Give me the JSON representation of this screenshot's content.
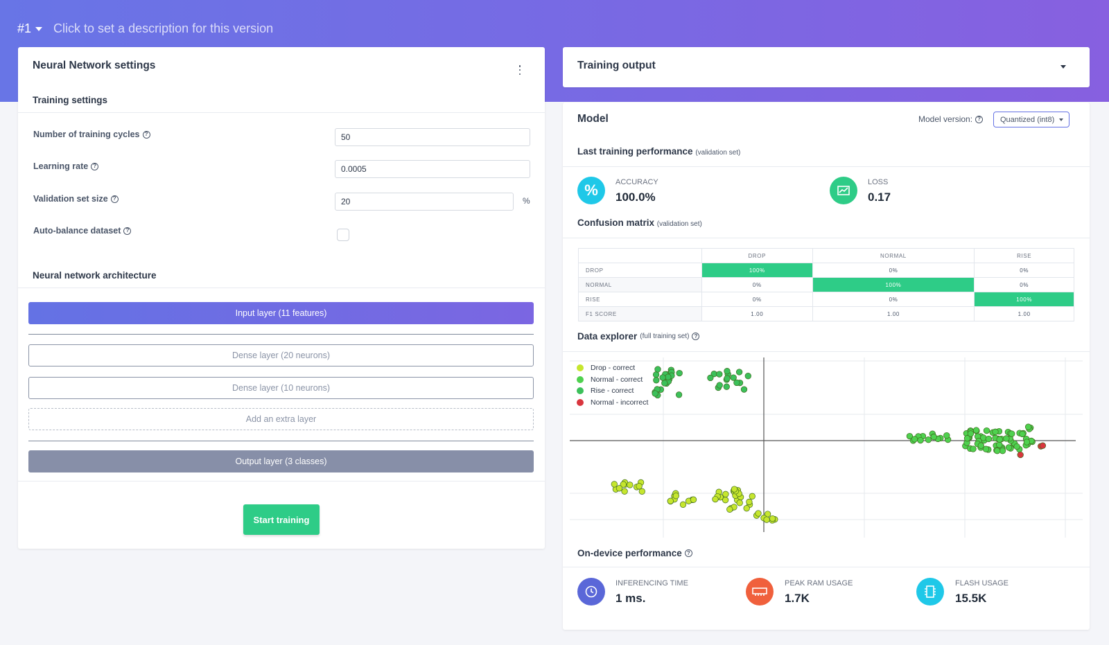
{
  "version": {
    "number": "#1",
    "description": "Click to set a description for this version"
  },
  "nn_settings": {
    "title": "Neural Network settings",
    "training_settings_title": "Training settings",
    "fields": [
      {
        "label": "Number of training cycles",
        "value": "50"
      },
      {
        "label": "Learning rate",
        "value": "0.0005"
      },
      {
        "label": "Validation set size",
        "value": "20",
        "suffix": "%"
      },
      {
        "label": "Auto-balance dataset",
        "checked": false
      }
    ],
    "architecture_title": "Neural network architecture",
    "layers": {
      "input": "Input layer (11 features)",
      "dense1": "Dense layer (20 neurons)",
      "dense2": "Dense layer (10 neurons)",
      "add": "Add an extra layer",
      "output": "Output layer (3 classes)"
    },
    "start_button": "Start training"
  },
  "training_output": {
    "title": "Training output"
  },
  "model": {
    "title": "Model",
    "version_label": "Model version:",
    "version_value": "Quantized (int8)",
    "last_perf_title": "Last training performance",
    "last_perf_sub": "(validation set)",
    "accuracy_label": "ACCURACY",
    "accuracy_value": "100.0%",
    "loss_label": "LOSS",
    "loss_value": "0.17",
    "confusion_title": "Confusion matrix",
    "confusion_sub": "(validation set)",
    "confusion": {
      "columns": [
        "DROP",
        "NORMAL",
        "RISE"
      ],
      "rows": [
        {
          "label": "DROP",
          "values": [
            "100%",
            "0%",
            "0%"
          ]
        },
        {
          "label": "NORMAL",
          "values": [
            "0%",
            "100%",
            "0%"
          ]
        },
        {
          "label": "RISE",
          "values": [
            "0%",
            "0%",
            "100%"
          ]
        },
        {
          "label": "F1 SCORE",
          "values": [
            "1.00",
            "1.00",
            "1.00"
          ]
        }
      ]
    },
    "explorer_title": "Data explorer",
    "explorer_sub": "(full training set)",
    "legend": [
      {
        "label": "Drop - correct",
        "color": "#c6e62e"
      },
      {
        "label": "Normal - correct",
        "color": "#4fd14f"
      },
      {
        "label": "Rise - correct",
        "color": "#3cc05a"
      },
      {
        "label": "Normal - incorrect",
        "color": "#d9363e"
      }
    ],
    "ondevice_title": "On-device performance",
    "inferencing_label": "INFERENCING TIME",
    "inferencing_value": "1 ms.",
    "ram_label": "PEAK RAM USAGE",
    "ram_value": "1.7K",
    "flash_label": "FLASH USAGE",
    "flash_value": "15.5K"
  },
  "colors": {
    "accent": "#6472e4",
    "success": "#2ecc87",
    "accuracy_icon": "#1fc8e8",
    "loss_icon": "#2ecc87",
    "inferencing_icon": "#5a67d8",
    "ram_icon": "#f0603c",
    "flash_icon": "#1fc8e8"
  }
}
